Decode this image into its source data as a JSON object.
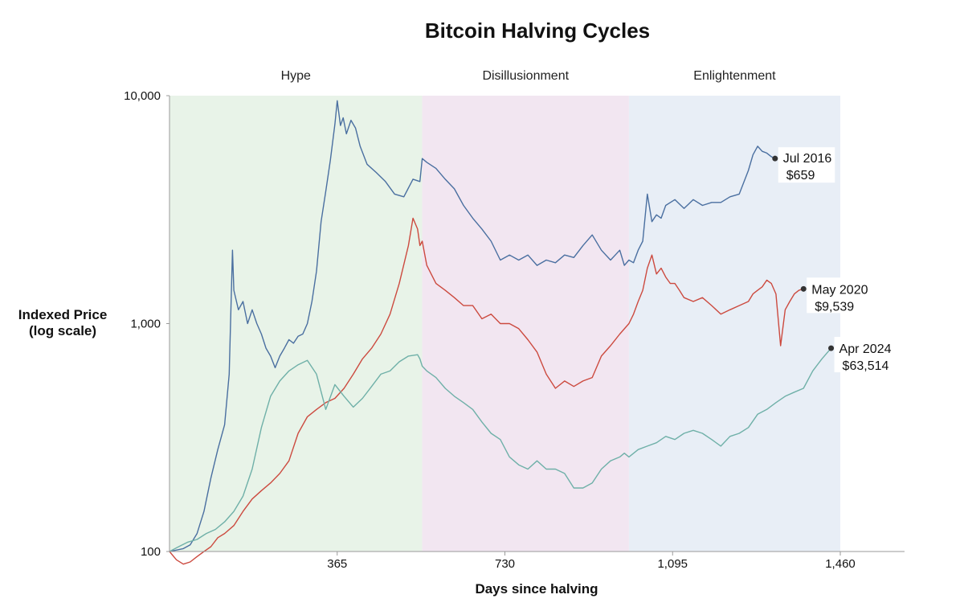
{
  "chart_data": {
    "type": "line",
    "title": "Bitcoin Halving Cycles",
    "xlabel": "Days since halving",
    "ylabel_line1": "Indexed Price",
    "ylabel_line2": "(log scale)",
    "xlim": [
      0,
      1460
    ],
    "ylim": [
      100,
      10000
    ],
    "y_scale": "log",
    "x_ticks": [
      {
        "value": 365,
        "label": "365"
      },
      {
        "value": 730,
        "label": "730"
      },
      {
        "value": 1095,
        "label": "1,095"
      },
      {
        "value": 1460,
        "label": "1,460"
      }
    ],
    "y_ticks": [
      {
        "value": 100,
        "label": "100"
      },
      {
        "value": 1000,
        "label": "1,000"
      },
      {
        "value": 10000,
        "label": "10,000"
      }
    ],
    "grid": false,
    "phases": [
      {
        "label": "Hype",
        "x_start": 0,
        "x_end": 550,
        "color": "#e8f3e8"
      },
      {
        "label": "Disillusionment",
        "x_start": 550,
        "x_end": 1000,
        "color": "#f2e6f1"
      },
      {
        "label": "Enlightenment",
        "x_start": 1000,
        "x_end": 1460,
        "color": "#e8eef6"
      }
    ],
    "series": [
      {
        "name": "Jul 2016",
        "end_value": "$659",
        "color": "#4a6fa0",
        "x": [
          0,
          30,
          45,
          60,
          75,
          90,
          105,
          120,
          130,
          137,
          140,
          150,
          160,
          170,
          180,
          190,
          200,
          210,
          220,
          230,
          240,
          250,
          260,
          270,
          280,
          290,
          300,
          310,
          320,
          330,
          340,
          350,
          360,
          365,
          372,
          378,
          385,
          395,
          405,
          415,
          430,
          450,
          470,
          490,
          510,
          530,
          545,
          550,
          560,
          580,
          600,
          620,
          640,
          660,
          680,
          700,
          720,
          740,
          760,
          780,
          800,
          820,
          840,
          860,
          880,
          900,
          920,
          940,
          960,
          980,
          990,
          1000,
          1010,
          1020,
          1030,
          1040,
          1050,
          1060,
          1070,
          1080,
          1100,
          1120,
          1140,
          1160,
          1180,
          1200,
          1220,
          1240,
          1260,
          1270,
          1280,
          1290,
          1300,
          1310,
          1318
        ],
        "y": [
          100,
          103,
          107,
          120,
          150,
          210,
          280,
          360,
          600,
          2100,
          1400,
          1150,
          1250,
          1000,
          1150,
          1000,
          900,
          780,
          720,
          640,
          720,
          780,
          850,
          820,
          880,
          900,
          1000,
          1250,
          1700,
          2800,
          3800,
          5200,
          7500,
          9500,
          7400,
          8000,
          6800,
          7800,
          7200,
          6000,
          5000,
          4600,
          4200,
          3700,
          3600,
          4300,
          4200,
          5300,
          5100,
          4800,
          4300,
          3900,
          3300,
          2900,
          2600,
          2300,
          1900,
          2000,
          1900,
          2000,
          1800,
          1900,
          1850,
          2000,
          1950,
          2200,
          2450,
          2100,
          1900,
          2100,
          1800,
          1900,
          1850,
          2100,
          2300,
          3700,
          2800,
          3000,
          2900,
          3300,
          3500,
          3200,
          3500,
          3300,
          3400,
          3400,
          3600,
          3700,
          4700,
          5500,
          6000,
          5700,
          5600,
          5400,
          5300
        ]
      },
      {
        "name": "May 2020",
        "end_value": "$9,539",
        "color": "#cc4a3f",
        "x": [
          0,
          15,
          30,
          45,
          60,
          75,
          90,
          105,
          120,
          140,
          160,
          180,
          200,
          220,
          240,
          260,
          280,
          300,
          320,
          340,
          360,
          380,
          400,
          420,
          440,
          460,
          480,
          500,
          520,
          530,
          540,
          545,
          550,
          560,
          580,
          600,
          620,
          640,
          660,
          680,
          700,
          720,
          740,
          760,
          780,
          800,
          820,
          840,
          860,
          880,
          900,
          920,
          940,
          960,
          980,
          1000,
          1010,
          1020,
          1030,
          1040,
          1050,
          1060,
          1070,
          1080,
          1090,
          1100,
          1110,
          1120,
          1140,
          1160,
          1180,
          1200,
          1220,
          1240,
          1260,
          1270,
          1280,
          1290,
          1300,
          1310,
          1320,
          1330,
          1340,
          1350,
          1360,
          1370,
          1380
        ],
        "y": [
          100,
          92,
          88,
          90,
          95,
          100,
          105,
          115,
          120,
          130,
          150,
          170,
          185,
          200,
          220,
          250,
          330,
          390,
          420,
          450,
          470,
          520,
          600,
          700,
          780,
          900,
          1100,
          1500,
          2200,
          2900,
          2600,
          2200,
          2300,
          1800,
          1500,
          1400,
          1300,
          1200,
          1200,
          1050,
          1100,
          1000,
          1000,
          950,
          850,
          750,
          600,
          520,
          560,
          530,
          560,
          580,
          720,
          800,
          900,
          1000,
          1100,
          1250,
          1400,
          1750,
          2000,
          1650,
          1750,
          1600,
          1500,
          1500,
          1400,
          1300,
          1250,
          1300,
          1200,
          1100,
          1150,
          1200,
          1250,
          1350,
          1400,
          1450,
          1550,
          1500,
          1350,
          800,
          1150,
          1250,
          1350,
          1400,
          1420
        ]
      },
      {
        "name": "Apr 2024",
        "end_value": "$63,514",
        "color": "#6fb0a8",
        "x": [
          0,
          20,
          40,
          60,
          80,
          100,
          120,
          140,
          160,
          180,
          200,
          220,
          240,
          260,
          280,
          300,
          320,
          340,
          360,
          380,
          400,
          420,
          440,
          460,
          480,
          500,
          520,
          540,
          545,
          550,
          560,
          580,
          600,
          620,
          640,
          660,
          680,
          700,
          720,
          740,
          760,
          780,
          800,
          820,
          840,
          860,
          880,
          900,
          920,
          940,
          960,
          980,
          990,
          1000,
          1020,
          1040,
          1060,
          1080,
          1100,
          1120,
          1140,
          1160,
          1180,
          1200,
          1220,
          1240,
          1260,
          1280,
          1300,
          1320,
          1340,
          1360,
          1380,
          1400,
          1420,
          1440
        ],
        "y": [
          100,
          105,
          110,
          113,
          120,
          125,
          135,
          150,
          175,
          230,
          350,
          480,
          560,
          620,
          660,
          690,
          600,
          420,
          540,
          480,
          430,
          470,
          530,
          600,
          620,
          680,
          720,
          730,
          700,
          650,
          620,
          580,
          520,
          480,
          450,
          420,
          370,
          330,
          310,
          260,
          240,
          230,
          250,
          230,
          230,
          220,
          190,
          190,
          200,
          230,
          250,
          260,
          270,
          260,
          280,
          290,
          300,
          320,
          310,
          330,
          340,
          330,
          310,
          290,
          320,
          330,
          350,
          400,
          420,
          450,
          480,
          500,
          520,
          620,
          700,
          780
        ]
      }
    ]
  }
}
